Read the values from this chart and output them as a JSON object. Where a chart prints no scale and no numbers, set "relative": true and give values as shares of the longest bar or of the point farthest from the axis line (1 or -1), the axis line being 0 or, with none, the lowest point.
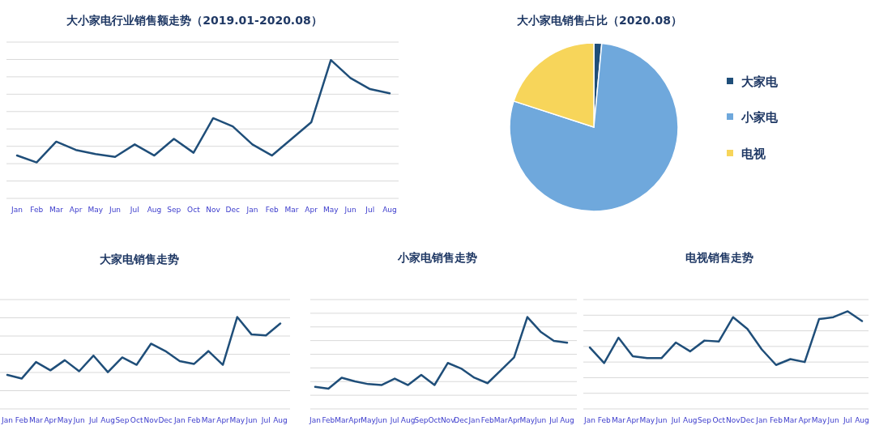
{
  "chart_data": [
    {
      "type": "line",
      "title": "大小家电行业销售额走势（2019.01-2020.08）",
      "relative": true,
      "grid": "y",
      "marker": "none",
      "line_style": "solid",
      "legend": false,
      "categories": [
        "Jan",
        "Feb",
        "Mar",
        "Apr",
        "May",
        "Jun",
        "Jul",
        "Aug",
        "Sep",
        "Oct",
        "Nov",
        "Dec",
        "Jan",
        "Feb",
        "Mar",
        "Apr",
        "May",
        "Jun",
        "Jul",
        "Aug"
      ],
      "series": [
        {
          "color": "#1f4e79",
          "values": [
            0.31,
            0.26,
            0.41,
            0.35,
            0.32,
            0.3,
            0.39,
            0.31,
            0.43,
            0.33,
            0.58,
            0.52,
            0.39,
            0.31,
            0.43,
            0.55,
            1,
            0.87,
            0.79,
            0.76
          ]
        }
      ]
    },
    {
      "type": "pie",
      "title": "大小家电销售占比（2020.08）",
      "legend": "right",
      "categories": [
        "大家电",
        "小家电",
        "电视"
      ],
      "values": [
        1.5,
        78.5,
        20
      ],
      "colors": [
        "#1f4e79",
        "#6fa8dc",
        "#f7d55a"
      ]
    },
    {
      "type": "line",
      "title": "大家电销售走势",
      "relative": true,
      "grid": "y",
      "marker": "none",
      "line_style": "solid",
      "legend": false,
      "categories": [
        "Jan",
        "Feb",
        "Mar",
        "Apr",
        "May",
        "Jun",
        "Jul",
        "Aug",
        "Sep",
        "Oct",
        "Nov",
        "Dec",
        "Jan",
        "Feb",
        "Mar",
        "Apr",
        "May",
        "Jun",
        "Jul",
        "Aug"
      ],
      "series": [
        {
          "color": "#1f4e79",
          "values": [
            0.37,
            0.33,
            0.51,
            0.42,
            0.53,
            0.41,
            0.58,
            0.4,
            0.56,
            0.48,
            0.71,
            0.63,
            0.52,
            0.49,
            0.63,
            0.48,
            1,
            0.81,
            0.8,
            0.93
          ]
        }
      ]
    },
    {
      "type": "line",
      "title": "小家电销售走势",
      "relative": true,
      "grid": "y",
      "marker": "none",
      "line_style": "solid",
      "legend": false,
      "categories": [
        "Jan",
        "Feb",
        "Mar",
        "Apr",
        "May",
        "Jun",
        "Jul",
        "Aug",
        "Sep",
        "Oct",
        "Nov",
        "Dec",
        "Jan",
        "Feb",
        "Mar",
        "Apr",
        "May",
        "Jun",
        "Jul",
        "Aug"
      ],
      "series": [
        {
          "color": "#1f4e79",
          "values": [
            0.24,
            0.22,
            0.34,
            0.3,
            0.27,
            0.26,
            0.33,
            0.26,
            0.37,
            0.26,
            0.5,
            0.44,
            0.34,
            0.28,
            0.42,
            0.56,
            1,
            0.84,
            0.74,
            0.72
          ]
        }
      ]
    },
    {
      "type": "line",
      "title": "电视销售走势",
      "relative": true,
      "grid": "y",
      "marker": "none",
      "line_style": "solid",
      "legend": false,
      "categories": [
        "Jan",
        "Feb",
        "Mar",
        "Apr",
        "May",
        "Jun",
        "Jul",
        "Aug",
        "Sep",
        "Oct",
        "Nov",
        "Dec",
        "Jan",
        "Feb",
        "Mar",
        "Apr",
        "May",
        "Jun",
        "Jul",
        "Aug"
      ],
      "series": [
        {
          "color": "#1f4e79",
          "values": [
            0.63,
            0.47,
            0.73,
            0.54,
            0.52,
            0.52,
            0.68,
            0.59,
            0.7,
            0.69,
            0.94,
            0.82,
            0.61,
            0.45,
            0.51,
            0.48,
            0.92,
            0.94,
            1,
            0.9
          ]
        }
      ]
    }
  ]
}
